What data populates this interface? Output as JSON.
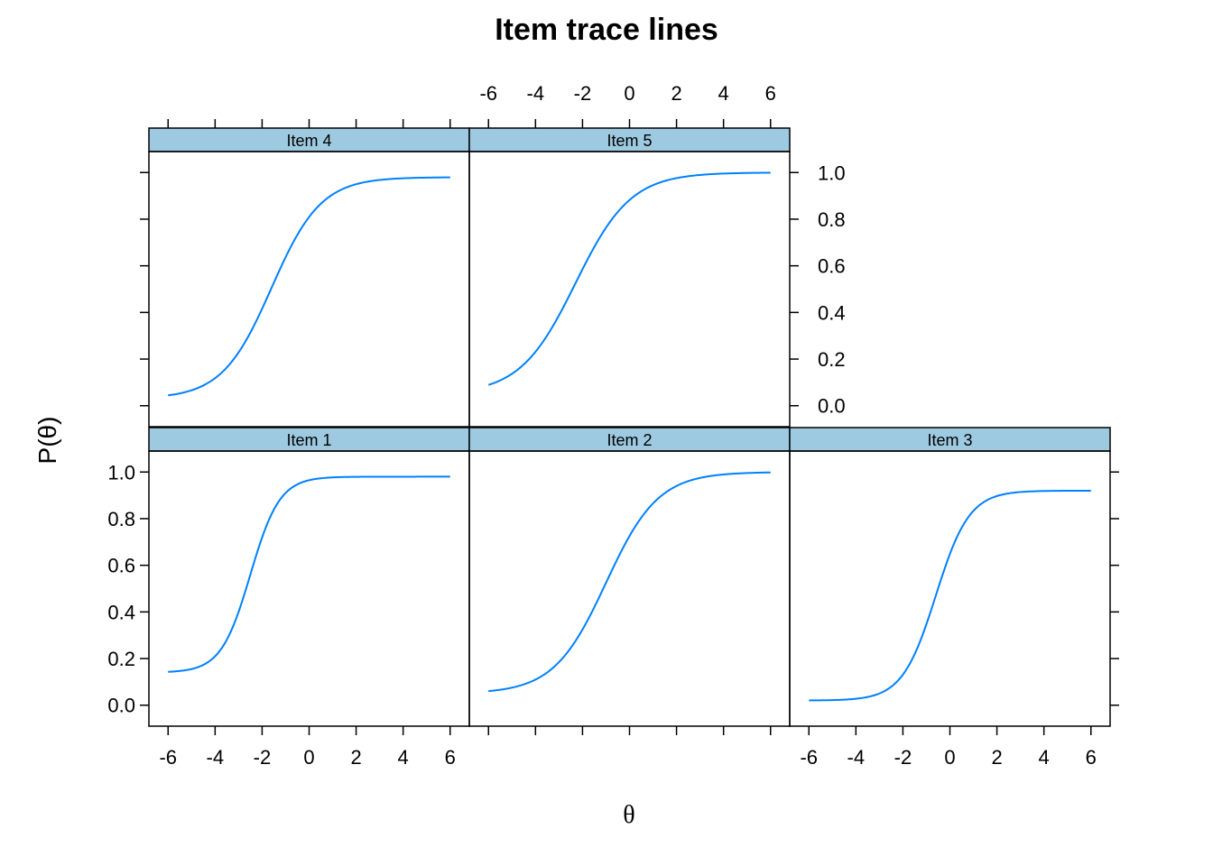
{
  "chart_data": {
    "type": "line",
    "title": "Item trace lines",
    "xlabel": "θ",
    "ylabel": "P(θ)",
    "xlim": [
      -6,
      6
    ],
    "ylim": [
      0,
      1
    ],
    "x_ticks": [
      -6,
      -4,
      -2,
      0,
      2,
      4,
      6
    ],
    "y_ticks": [
      0.0,
      0.2,
      0.4,
      0.6,
      0.8,
      1.0
    ],
    "y_tick_labels": [
      "0.0",
      "0.2",
      "0.4",
      "0.6",
      "0.8",
      "1.0"
    ],
    "line_color": "#0080ff",
    "strip_color": "#9ecae1",
    "grid": false,
    "layout": "3 columns x 2 rows, bottom row: Item 1, Item 2, Item 3; top row: Item 4, Item 5",
    "panels": [
      {
        "name": "Item 1",
        "row": 1,
        "col": 0,
        "guess": 0.14,
        "upper": 0.98,
        "a": 1.6,
        "b": -2.5
      },
      {
        "name": "Item 2",
        "row": 1,
        "col": 1,
        "guess": 0.05,
        "upper": 1.0,
        "a": 0.9,
        "b": -1.0
      },
      {
        "name": "Item 3",
        "row": 1,
        "col": 2,
        "guess": 0.02,
        "upper": 0.92,
        "a": 1.4,
        "b": -0.6
      },
      {
        "name": "Item 4",
        "row": 0,
        "col": 0,
        "guess": 0.03,
        "upper": 0.98,
        "a": 0.95,
        "b": -1.6
      },
      {
        "name": "Item 5",
        "row": 0,
        "col": 1,
        "guess": 0.05,
        "upper": 1.0,
        "a": 0.85,
        "b": -2.3
      }
    ]
  }
}
